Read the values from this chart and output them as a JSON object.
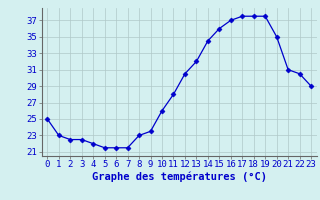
{
  "hours": [
    0,
    1,
    2,
    3,
    4,
    5,
    6,
    7,
    8,
    9,
    10,
    11,
    12,
    13,
    14,
    15,
    16,
    17,
    18,
    19,
    20,
    21,
    22,
    23
  ],
  "temps": [
    25,
    23,
    22.5,
    22.5,
    22,
    21.5,
    21.5,
    21.5,
    23,
    23.5,
    26,
    28,
    30.5,
    32,
    34.5,
    36,
    37,
    37.5,
    37.5,
    37.5,
    35,
    31,
    30.5,
    29
  ],
  "xlabel": "Graphe des températures (°C)",
  "xlim": [
    -0.5,
    23.5
  ],
  "ylim": [
    20.5,
    38.5
  ],
  "yticks": [
    21,
    23,
    25,
    27,
    29,
    31,
    33,
    35,
    37
  ],
  "xticks": [
    0,
    1,
    2,
    3,
    4,
    5,
    6,
    7,
    8,
    9,
    10,
    11,
    12,
    13,
    14,
    15,
    16,
    17,
    18,
    19,
    20,
    21,
    22,
    23
  ],
  "line_color": "#0000cc",
  "marker": "D",
  "marker_size": 2.5,
  "background_color": "#d4f0f0",
  "grid_color": "#b0c8c8",
  "xlabel_fontsize": 7.5,
  "tick_fontsize": 6.5
}
